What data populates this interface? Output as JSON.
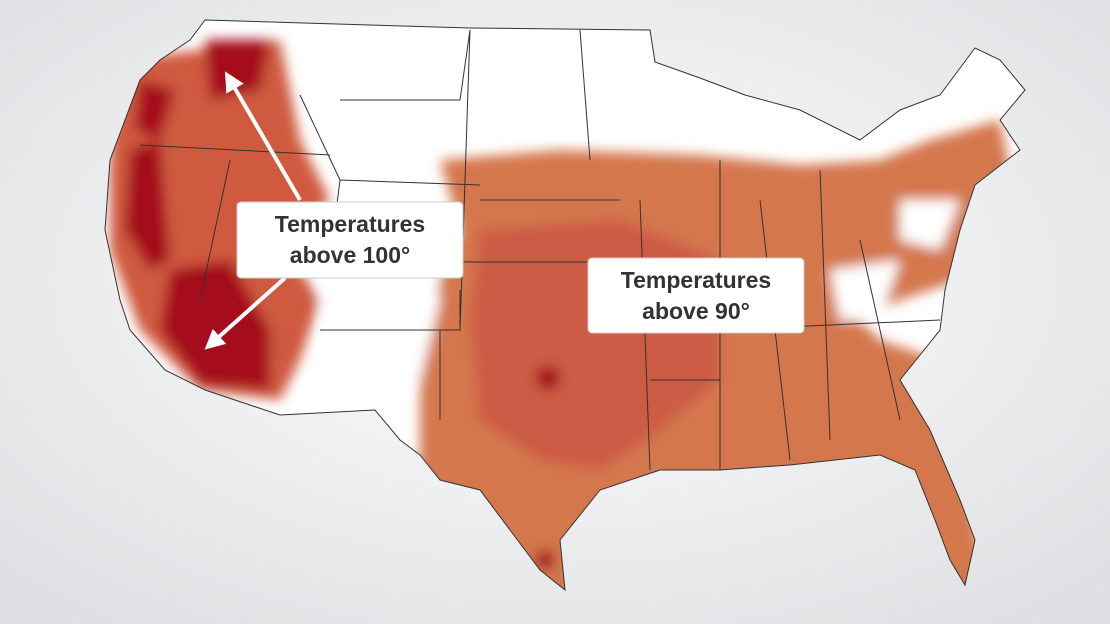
{
  "labels": [
    {
      "lines": [
        "Temperatures",
        "above 100°"
      ]
    },
    {
      "lines": [
        "Temperatures",
        "above 90°"
      ]
    }
  ]
}
